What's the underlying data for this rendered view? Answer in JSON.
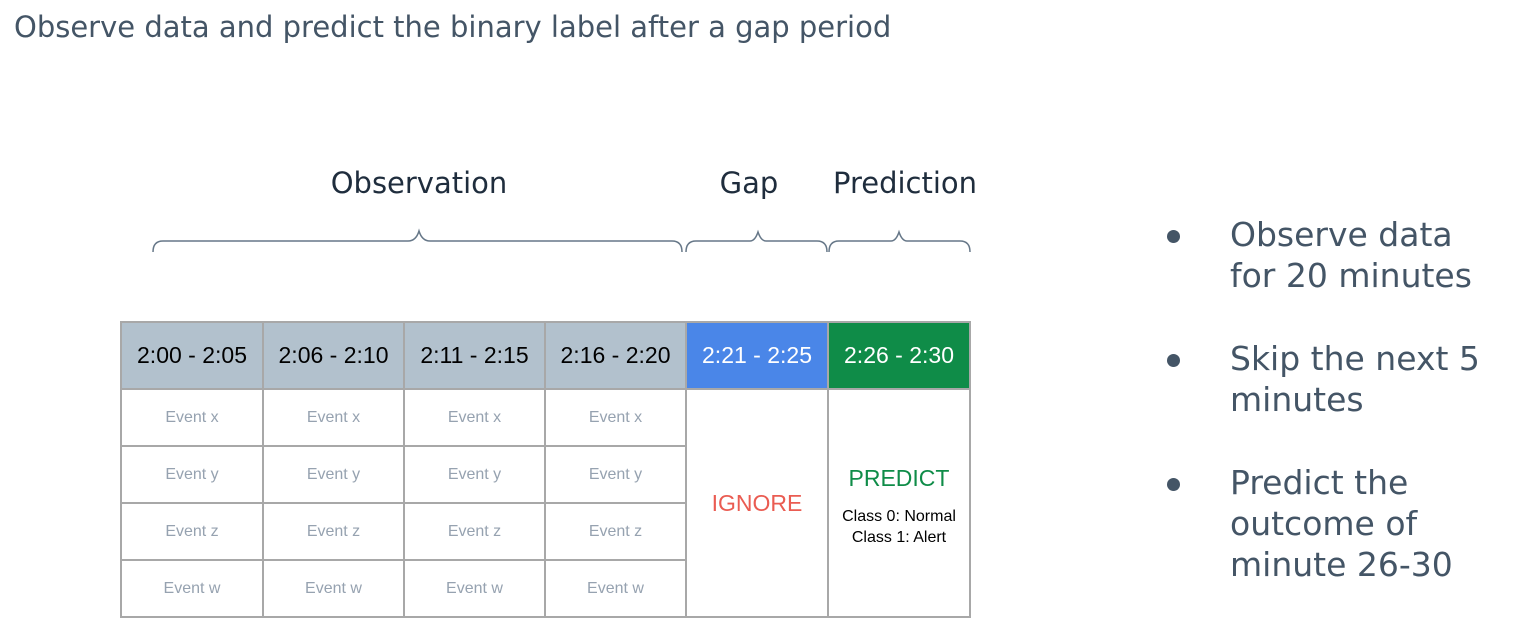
{
  "title": "Observe data and predict the binary label after a gap period",
  "segments": {
    "observation": "Observation",
    "gap": "Gap",
    "prediction": "Prediction"
  },
  "table": {
    "headers": [
      "2:00 - 2:05",
      "2:06 - 2:10",
      "2:11 - 2:15",
      "2:16 - 2:20",
      "2:21 - 2:25",
      "2:26 - 2:30"
    ],
    "events": [
      "Event x",
      "Event y",
      "Event z",
      "Event w"
    ],
    "ignore": "IGNORE",
    "predict": "PREDICT",
    "classes": [
      "Class 0: Normal",
      "Class 1: Alert"
    ]
  },
  "bullets": [
    "Observe data for 20 minutes",
    "Skip the next 5 minutes",
    "Predict the outcome of minute 26-30"
  ],
  "colors": {
    "observation_header": "#b2c1cd",
    "gap_header": "#4a86e8",
    "prediction_header": "#0f8c48",
    "ignore_text": "#ea5c52",
    "predict_text": "#0f8c48",
    "text_dark": "#445566"
  }
}
